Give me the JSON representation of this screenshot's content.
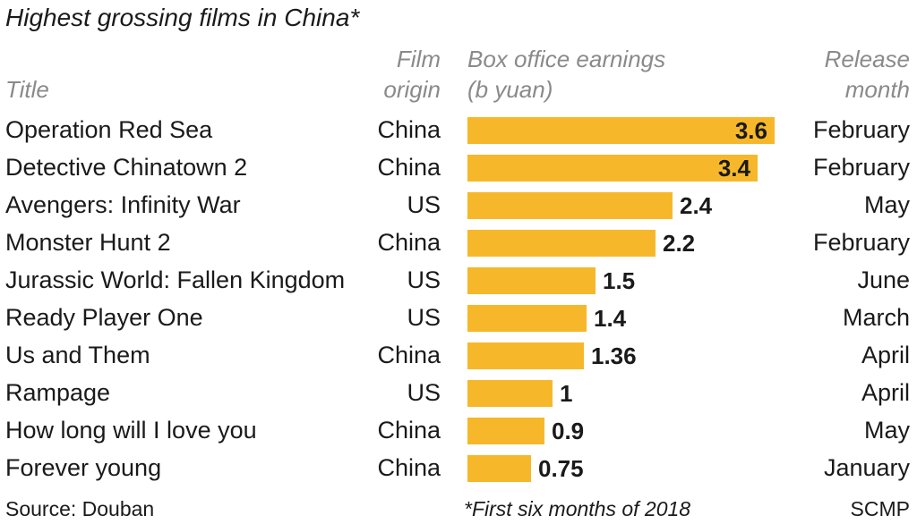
{
  "header": {
    "title": "Highest grossing films in China*",
    "col_title": "Title",
    "col_origin": "Film\norigin",
    "col_box": "Box office earnings\n(b yuan)",
    "col_month": "Release\nmonth"
  },
  "chart_data": {
    "type": "bar",
    "orientation": "horizontal",
    "title": "Highest grossing films in China*",
    "xlabel": "Box office earnings (b yuan)",
    "ylabel": "",
    "categories": [
      "Operation Red Sea",
      "Detective Chinatown 2",
      "Avengers: Infinity War",
      "Monster Hunt 2",
      "Jurassic World: Fallen Kingdom",
      "Ready Player One",
      "Us and Them",
      "Rampage",
      "How long will I love you",
      "Forever young"
    ],
    "values": [
      3.6,
      3.4,
      2.4,
      2.2,
      1.5,
      1.4,
      1.36,
      1,
      0.9,
      0.75
    ],
    "value_labels": [
      "3.6",
      "3.4",
      "2.4",
      "2.2",
      "1.5",
      "1.4",
      "1.36",
      "1",
      "0.9",
      "0.75"
    ],
    "origin": [
      "China",
      "China",
      "US",
      "China",
      "US",
      "US",
      "China",
      "US",
      "China",
      "China"
    ],
    "release_month": [
      "February",
      "February",
      "May",
      "February",
      "June",
      "March",
      "April",
      "April",
      "May",
      "January"
    ],
    "xlim": [
      0,
      3.6
    ],
    "grid": false,
    "legend": "none",
    "bar_color": "#f6b82a"
  },
  "footer": {
    "source": "Source: Douban",
    "note": "*First six months of 2018",
    "credit": "SCMP"
  }
}
